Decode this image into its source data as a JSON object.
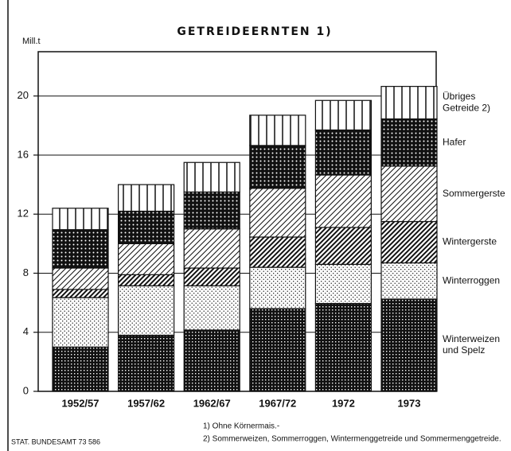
{
  "chart_data": {
    "type": "stacked_bar",
    "title": "GETREIDEERNTEN 1)",
    "y_label": "Mill.t",
    "categories": [
      "1952/57",
      "1957/62",
      "1962/67",
      "1967/72",
      "1972",
      "1973"
    ],
    "series": [
      {
        "name": "Winterweizen und Spelz",
        "color": "#111",
        "values": [
          3.0,
          3.8,
          4.15,
          5.6,
          5.95,
          6.25
        ]
      },
      {
        "name": "Winterroggen",
        "color": "#111",
        "values": [
          3.35,
          3.35,
          3.0,
          2.8,
          2.65,
          2.45
        ]
      },
      {
        "name": "Wintergerste",
        "color": "#111",
        "values": [
          0.55,
          0.75,
          1.2,
          2.05,
          2.5,
          2.8
        ]
      },
      {
        "name": "Sommergerste",
        "color": "#111",
        "values": [
          1.45,
          2.1,
          2.65,
          3.3,
          3.55,
          3.75
        ]
      },
      {
        "name": "Hafer",
        "color": "#111",
        "values": [
          2.6,
          2.2,
          2.5,
          2.9,
          3.05,
          3.2
        ]
      },
      {
        "name": "Übriges Getreide 2)",
        "color": "#111",
        "values": [
          1.45,
          1.8,
          2.0,
          2.05,
          2.0,
          2.2
        ]
      }
    ],
    "ylim": [
      0,
      23
    ],
    "yticks": [
      0,
      4,
      8,
      12,
      16,
      20
    ],
    "grid": true,
    "footnotes": [
      "1) Ohne Körnermais.-",
      "2) Sommerweizen, Sommerroggen, Wintermenggetreide und Sommermenggetreide."
    ],
    "source": "STAT. BUNDESAMT 73 586"
  }
}
